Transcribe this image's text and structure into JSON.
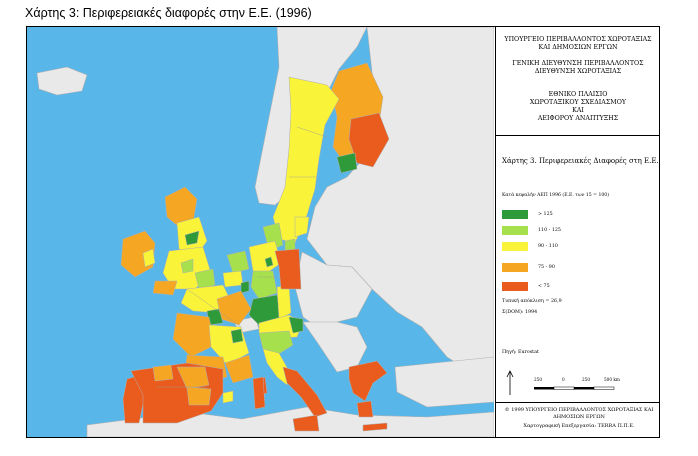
{
  "caption": "Χάρτης 3: Περιφερειακές διαφορές στην Ε.Ε. (1996)",
  "panel": {
    "ministry": [
      "ΥΠΟΥΡΓΕΙΟ ΠΕΡΙΒΑΛΛΟΝΤΟΣ ΧΩΡΟΤΑΞΙΑΣ",
      "ΚΑΙ ΔΗΜΟΣΙΩΝ ΕΡΓΩΝ"
    ],
    "directorate": [
      "ΓΕΝΙΚΗ ΔΙΕΥΘΥΝΣΗ ΠΕΡΙΒΑΛΛΟΝΤΟΣ",
      "ΔΙΕΥΘΥΝΣΗ ΧΩΡΟΤΑΞΙΑΣ"
    ],
    "framework": [
      "ΕΘΝΙΚΟ ΠΛΑΙΣΙΟ",
      "ΧΩΡΟΤΑΞΙΚΟΥ ΣΧΕΔΙΑΣΜΟΥ",
      "ΚΑΙ",
      "ΑΕΙΦΟΡΟΥ ΑΝΑΠΤΥΞΗΣ"
    ],
    "map_title": "Χάρτης 3. Περιφερειακές Διαφορές στη Ε.Ε.",
    "legend_subtitle": "Κατά κεφαλήν ΑΕΠ 1996 (Ε.Ε. των 15 = 100)",
    "legend": [
      {
        "label": "> 125",
        "color": "#2f9a3a"
      },
      {
        "label": "110 - 125",
        "color": "#a6e04c"
      },
      {
        "label": "90 - 110",
        "color": "#f9f33a"
      },
      {
        "label": "75 - 90",
        "color": "#f5a623"
      },
      {
        "label": "< 75",
        "color": "#ea5b1e"
      }
    ],
    "note_1": "Τυπική απόκλιση = 26,9",
    "note_2": "Σ(DOM): 1994",
    "source": "Πηγή: Eurostat",
    "scale_ticks": [
      "250",
      "0",
      "250",
      "500 km"
    ],
    "footer_1": "© 1999 ΥΠΟΥΡΓΕΙΟ ΠΕΡΙΒΑΛΛΟΝΤΟΣ ΧΩΡΟΤΑΞΙΑΣ ΚΑΙ ΔΗΜΟΣΙΩΝ ΕΡΓΩΝ",
    "footer_2": "Χαρτογραφική Επεξεργασία: TERRA Π.Π.Ε."
  },
  "colors": {
    "sea": "#58b6e8",
    "non_eu_land": "#e9e9e9",
    "border": "#b0b0b0"
  }
}
